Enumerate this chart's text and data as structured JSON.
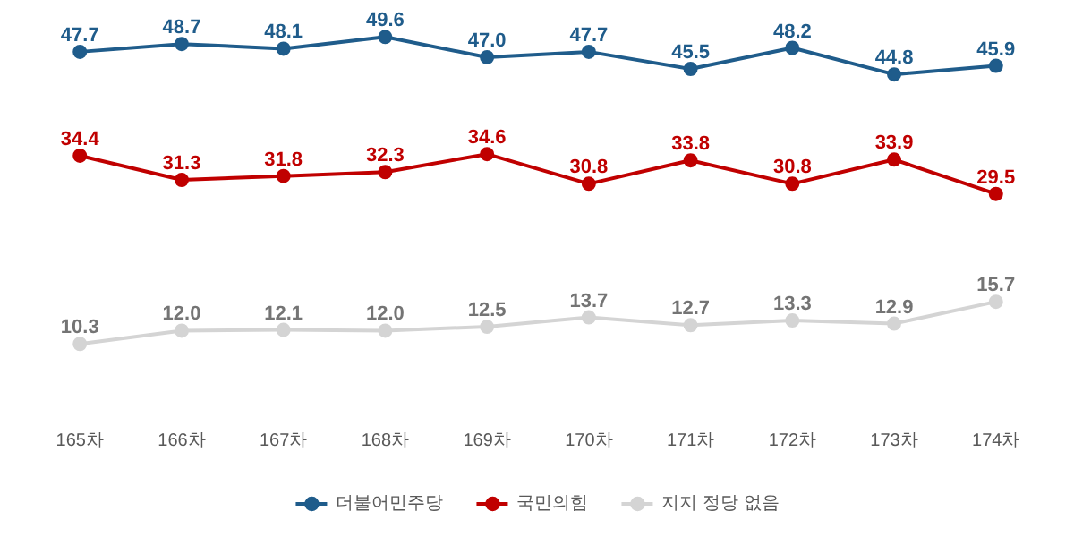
{
  "chart_data": {
    "type": "line",
    "categories": [
      "165차",
      "166차",
      "167차",
      "168차",
      "169차",
      "170차",
      "171차",
      "172차",
      "173차",
      "174차"
    ],
    "series": [
      {
        "name": "더불어민주당",
        "color": "#1f5c8b",
        "values": [
          47.7,
          48.7,
          48.1,
          49.6,
          47.0,
          47.7,
          45.5,
          48.2,
          44.8,
          45.9
        ],
        "value_labels": [
          "47.7",
          "48.7",
          "48.1",
          "49.6",
          "47.0",
          "47.7",
          "45.5",
          "48.2",
          "44.8",
          "45.9"
        ]
      },
      {
        "name": "국민의힘",
        "color": "#c00000",
        "values": [
          34.4,
          31.3,
          31.8,
          32.3,
          34.6,
          30.8,
          33.8,
          30.8,
          33.9,
          29.5
        ],
        "value_labels": [
          "34.4",
          "31.3",
          "31.8",
          "32.3",
          "34.6",
          "30.8",
          "33.8",
          "30.8",
          "33.9",
          "29.5"
        ]
      },
      {
        "name": "지지 정당 없음",
        "color": "#d4d4d4",
        "values": [
          10.3,
          12.0,
          12.1,
          12.0,
          12.5,
          13.7,
          12.7,
          13.3,
          12.9,
          15.7
        ],
        "value_labels": [
          "10.3",
          "12.0",
          "12.1",
          "12.0",
          "12.5",
          "13.7",
          "12.7",
          "13.3",
          "12.9",
          "15.7"
        ]
      }
    ],
    "marker": "circle",
    "line_style": "solid",
    "legend": "bottom"
  }
}
